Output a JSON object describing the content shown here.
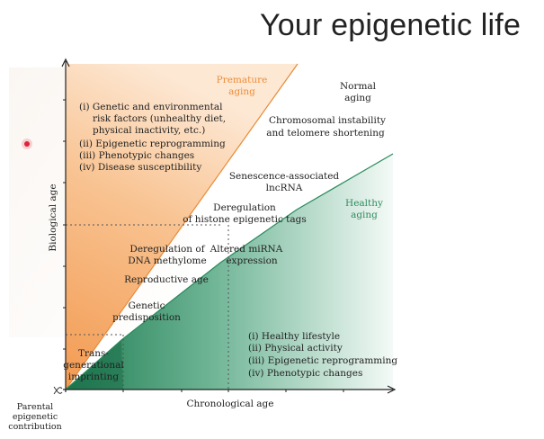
{
  "slide": {
    "title": "Your epigenetic life"
  },
  "colors": {
    "premature": "#f5a35a",
    "healthy": "#2c8a5e",
    "premature_label": "#ee8c34",
    "healthy_label": "#2f8a5d",
    "background_tint": "#fbf6f2"
  },
  "figure": {
    "axes": {
      "x_label": "Chronological age",
      "y_label": "Biological age",
      "origin_label": [
        "Parental",
        "epigenetic",
        "contribution"
      ]
    },
    "regions": {
      "premature": [
        "Premature",
        "aging"
      ],
      "normal": [
        "Normal",
        "aging"
      ],
      "healthy": [
        "Healthy",
        "aging"
      ]
    },
    "risk_factors": [
      "(i) Genetic and environmental",
      "risk factors (unhealthy diet,",
      "physical inactivity, etc.)",
      "(ii) Epigenetic reprogramming",
      "(iii) Phenotypic changes",
      "(iv) Disease susceptibility"
    ],
    "healthy_factors": [
      "(i) Healthy lifestyle",
      "(ii) Physical activity",
      "(iii) Epigenetic reprogramming",
      "(iv) Phenotypic changes"
    ],
    "annotations": {
      "chromosomal": [
        "Chromosomal instability",
        "and telomere shortening"
      ],
      "lncrna": [
        "Senescence-associated",
        "lncRNA"
      ],
      "histone": [
        "Deregulation",
        "of histone epigenetic tags"
      ],
      "methylome": [
        "Deregulation of",
        "DNA methylome"
      ],
      "mirna": [
        "Altered miRNA",
        "expression"
      ],
      "reproductive": [
        "Reproductive age"
      ],
      "genetic": [
        "Genetic",
        "predisposition"
      ],
      "transgenerational": [
        "Trans-",
        "generational",
        "imprinting"
      ]
    }
  }
}
